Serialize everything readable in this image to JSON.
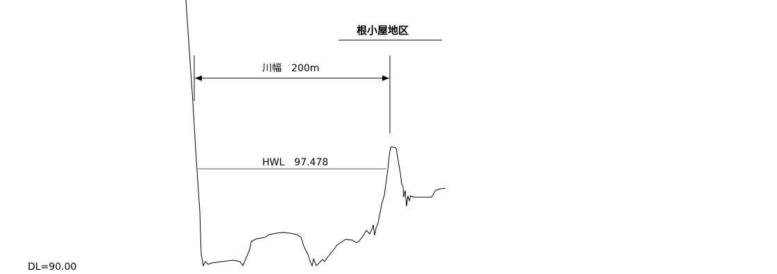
{
  "labels": {
    "district": "根小屋地区",
    "river_width": "川幅　200m",
    "hwl": "HWL　97.478",
    "datum": "DL=90.00"
  },
  "colors": {
    "line": "#000000",
    "hwl_line": "#3355cc",
    "background": "#ffffff"
  }
}
